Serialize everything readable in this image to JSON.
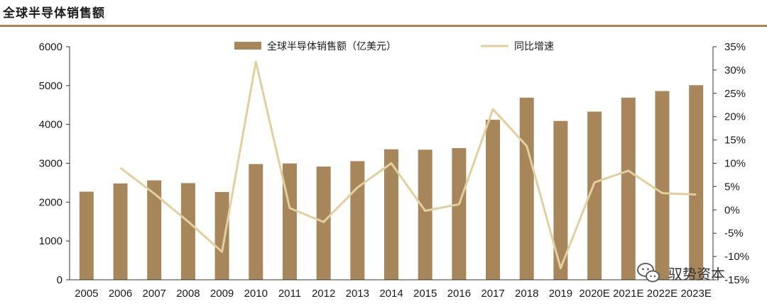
{
  "header": {
    "title": "全球半导体销售额"
  },
  "watermark": {
    "text": "驭势资本",
    "icon": "wechat-icon"
  },
  "colors": {
    "bar": "#a8865c",
    "line": "#e2cf9f",
    "rule": "#a8865c"
  },
  "chart_data": {
    "type": "bar",
    "categories": [
      "2005",
      "2006",
      "2007",
      "2008",
      "2009",
      "2010",
      "2011",
      "2012",
      "2013",
      "2014",
      "2015",
      "2016",
      "2017",
      "2018",
      "2019",
      "2020E",
      "2021E",
      "2022E",
      "2023E"
    ],
    "series": [
      {
        "name": "全球半导体销售额（亿美元）",
        "type": "bar",
        "axis": "left",
        "values": [
          2270,
          2480,
          2560,
          2490,
          2260,
          2980,
          2995,
          2915,
          3055,
          3360,
          3350,
          3390,
          4120,
          4690,
          4090,
          4330,
          4690,
          4860,
          5010
        ]
      },
      {
        "name": "同比增速",
        "type": "line",
        "axis": "right",
        "values": [
          null,
          9.0,
          3.5,
          -2.5,
          -9.0,
          31.8,
          0.4,
          -2.6,
          4.8,
          10.0,
          -0.2,
          1.2,
          21.6,
          13.7,
          -12.5,
          5.9,
          8.4,
          3.6,
          3.3
        ]
      }
    ],
    "y_left": {
      "ylim": [
        0,
        6000
      ],
      "ticks": [
        "0",
        "1000",
        "2000",
        "3000",
        "4000",
        "5000",
        "6000"
      ]
    },
    "y_right": {
      "ylim": [
        -15,
        35
      ],
      "ticks": [
        "-15%",
        "-10%",
        "-5%",
        "0%",
        "5%",
        "10%",
        "15%",
        "20%",
        "25%",
        "30%",
        "35%"
      ]
    },
    "legend": "top-center",
    "grid": false
  }
}
